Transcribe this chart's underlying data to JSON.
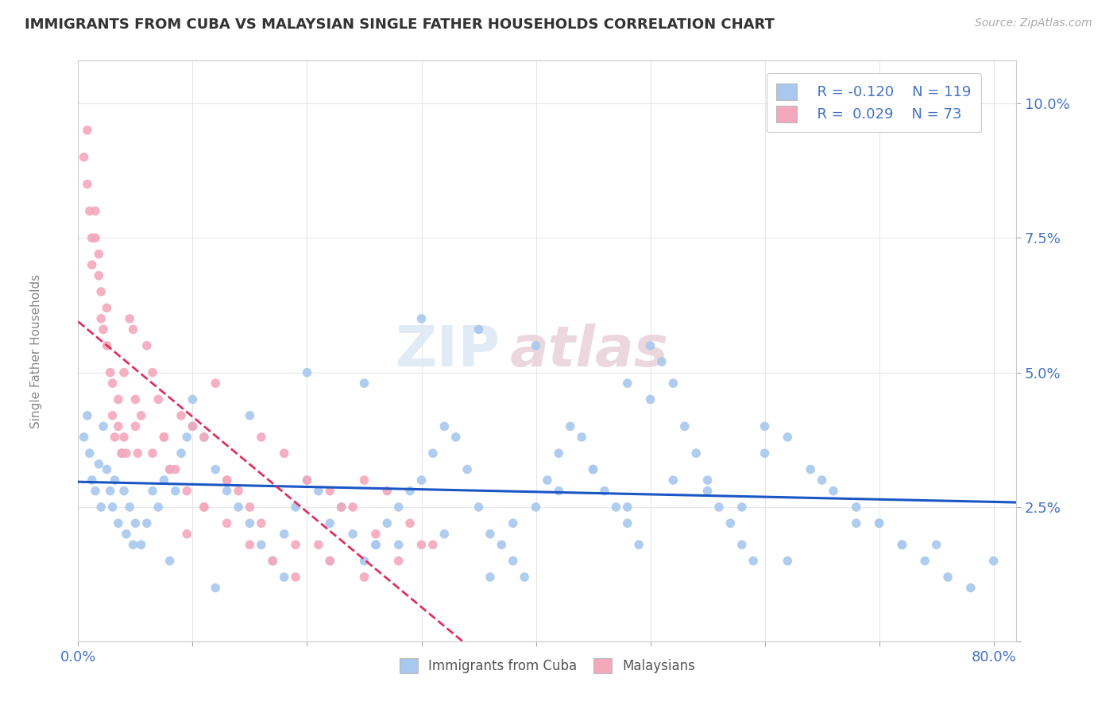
{
  "title": "IMMIGRANTS FROM CUBA VS MALAYSIAN SINGLE FATHER HOUSEHOLDS CORRELATION CHART",
  "source": "Source: ZipAtlas.com",
  "ylabel": "Single Father Households",
  "xlim": [
    0.0,
    0.82
  ],
  "ylim": [
    0.0,
    0.108
  ],
  "blue_color": "#A8C8EE",
  "pink_color": "#F4A8BC",
  "blue_line_color": "#1A56C4",
  "pink_line_color": "#E03060",
  "watermark_zip": "ZIP",
  "watermark_atlas": "atlas",
  "legend_R_blue": "-0.120",
  "legend_N_blue": "119",
  "legend_R_pink": "0.029",
  "legend_N_pink": "73",
  "background_color": "#FFFFFF",
  "blue_scatter_x": [
    0.005,
    0.008,
    0.01,
    0.012,
    0.015,
    0.018,
    0.02,
    0.022,
    0.025,
    0.028,
    0.03,
    0.032,
    0.035,
    0.038,
    0.04,
    0.042,
    0.045,
    0.048,
    0.05,
    0.055,
    0.06,
    0.065,
    0.07,
    0.075,
    0.08,
    0.085,
    0.09,
    0.095,
    0.1,
    0.11,
    0.12,
    0.13,
    0.14,
    0.15,
    0.16,
    0.17,
    0.18,
    0.19,
    0.2,
    0.21,
    0.22,
    0.23,
    0.24,
    0.25,
    0.26,
    0.27,
    0.28,
    0.29,
    0.3,
    0.31,
    0.32,
    0.33,
    0.34,
    0.35,
    0.36,
    0.37,
    0.38,
    0.39,
    0.4,
    0.41,
    0.42,
    0.43,
    0.44,
    0.45,
    0.46,
    0.47,
    0.48,
    0.49,
    0.5,
    0.51,
    0.52,
    0.53,
    0.54,
    0.55,
    0.56,
    0.57,
    0.58,
    0.59,
    0.6,
    0.62,
    0.64,
    0.66,
    0.68,
    0.7,
    0.72,
    0.74,
    0.76,
    0.78,
    0.5,
    0.48,
    0.3,
    0.35,
    0.2,
    0.1,
    0.6,
    0.65,
    0.55,
    0.7,
    0.75,
    0.8,
    0.15,
    0.25,
    0.4,
    0.45,
    0.38,
    0.28,
    0.18,
    0.08,
    0.52,
    0.58,
    0.42,
    0.32,
    0.22,
    0.12,
    0.68,
    0.72,
    0.62,
    0.48,
    0.36,
    0.26
  ],
  "blue_scatter_y": [
    0.038,
    0.042,
    0.035,
    0.03,
    0.028,
    0.033,
    0.025,
    0.04,
    0.032,
    0.028,
    0.025,
    0.03,
    0.022,
    0.035,
    0.028,
    0.02,
    0.025,
    0.018,
    0.022,
    0.018,
    0.022,
    0.028,
    0.025,
    0.03,
    0.032,
    0.028,
    0.035,
    0.038,
    0.04,
    0.038,
    0.032,
    0.028,
    0.025,
    0.022,
    0.018,
    0.015,
    0.02,
    0.025,
    0.03,
    0.028,
    0.022,
    0.025,
    0.02,
    0.015,
    0.018,
    0.022,
    0.025,
    0.028,
    0.03,
    0.035,
    0.04,
    0.038,
    0.032,
    0.025,
    0.02,
    0.018,
    0.015,
    0.012,
    0.025,
    0.03,
    0.035,
    0.04,
    0.038,
    0.032,
    0.028,
    0.025,
    0.022,
    0.018,
    0.045,
    0.052,
    0.048,
    0.04,
    0.035,
    0.03,
    0.025,
    0.022,
    0.018,
    0.015,
    0.04,
    0.038,
    0.032,
    0.028,
    0.025,
    0.022,
    0.018,
    0.015,
    0.012,
    0.01,
    0.055,
    0.048,
    0.06,
    0.058,
    0.05,
    0.045,
    0.035,
    0.03,
    0.028,
    0.022,
    0.018,
    0.015,
    0.042,
    0.048,
    0.055,
    0.032,
    0.022,
    0.018,
    0.012,
    0.015,
    0.03,
    0.025,
    0.028,
    0.02,
    0.015,
    0.01,
    0.022,
    0.018,
    0.015,
    0.025,
    0.012,
    0.018
  ],
  "pink_scatter_x": [
    0.005,
    0.008,
    0.008,
    0.01,
    0.012,
    0.012,
    0.015,
    0.015,
    0.018,
    0.018,
    0.02,
    0.02,
    0.022,
    0.025,
    0.025,
    0.028,
    0.03,
    0.03,
    0.032,
    0.035,
    0.035,
    0.038,
    0.04,
    0.04,
    0.042,
    0.045,
    0.048,
    0.05,
    0.05,
    0.052,
    0.055,
    0.06,
    0.065,
    0.07,
    0.075,
    0.08,
    0.09,
    0.1,
    0.11,
    0.12,
    0.13,
    0.14,
    0.15,
    0.16,
    0.18,
    0.2,
    0.22,
    0.24,
    0.26,
    0.28,
    0.3,
    0.065,
    0.075,
    0.085,
    0.095,
    0.11,
    0.13,
    0.15,
    0.17,
    0.19,
    0.21,
    0.23,
    0.25,
    0.27,
    0.29,
    0.31,
    0.095,
    0.11,
    0.13,
    0.16,
    0.19,
    0.22,
    0.25
  ],
  "pink_scatter_y": [
    0.09,
    0.095,
    0.085,
    0.08,
    0.075,
    0.07,
    0.08,
    0.075,
    0.068,
    0.072,
    0.065,
    0.06,
    0.058,
    0.062,
    0.055,
    0.05,
    0.048,
    0.042,
    0.038,
    0.045,
    0.04,
    0.035,
    0.05,
    0.038,
    0.035,
    0.06,
    0.058,
    0.045,
    0.04,
    0.035,
    0.042,
    0.055,
    0.05,
    0.045,
    0.038,
    0.032,
    0.042,
    0.04,
    0.038,
    0.048,
    0.03,
    0.028,
    0.025,
    0.038,
    0.035,
    0.03,
    0.028,
    0.025,
    0.02,
    0.015,
    0.018,
    0.035,
    0.038,
    0.032,
    0.028,
    0.025,
    0.022,
    0.018,
    0.015,
    0.012,
    0.018,
    0.025,
    0.03,
    0.028,
    0.022,
    0.018,
    0.02,
    0.025,
    0.03,
    0.022,
    0.018,
    0.015,
    0.012
  ]
}
